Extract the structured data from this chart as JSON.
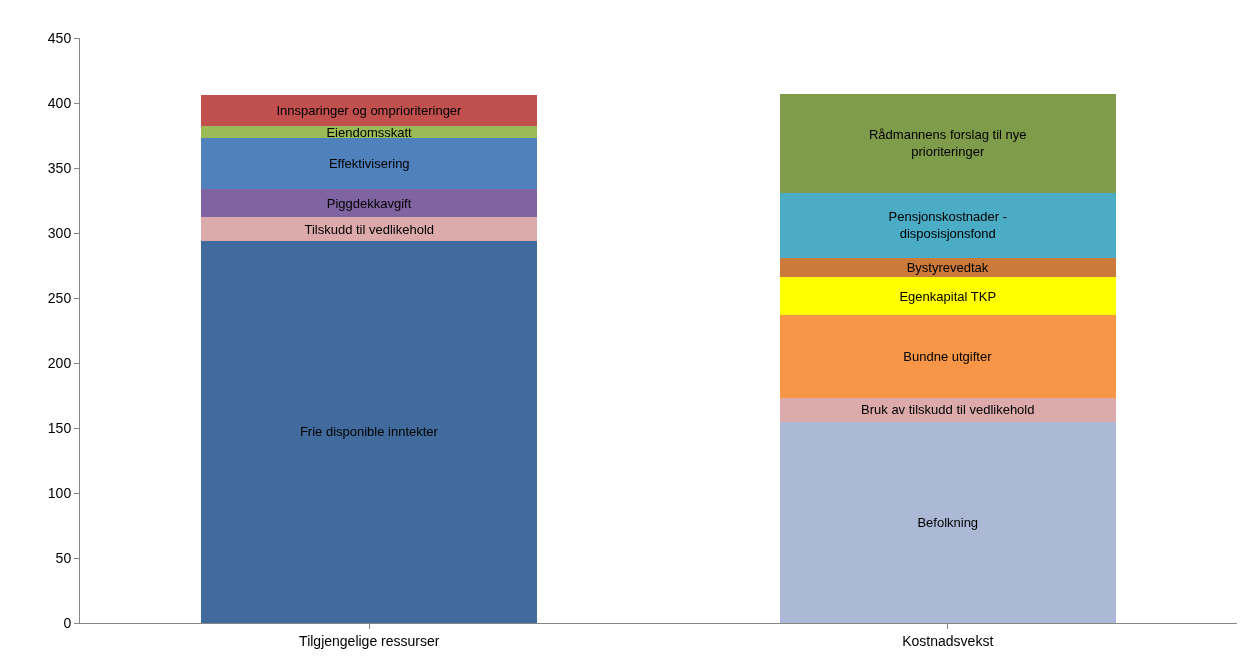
{
  "chart_data": {
    "type": "bar",
    "stacked": true,
    "categories": [
      "Tilgjengelige ressurser",
      "Kostnadsvekst"
    ],
    "series": [
      {
        "name": "Frie disponible inntekter",
        "color": "#416b9c",
        "values": [
          294,
          null
        ]
      },
      {
        "name": "Tilskudd til vedlikehold",
        "color": "#dcaaaa",
        "values": [
          18,
          null
        ]
      },
      {
        "name": "Piggdekkavgift",
        "color": "#8064a2",
        "values": [
          22,
          null
        ]
      },
      {
        "name": "Effektivisering",
        "color": "#4f81bd",
        "values": [
          39,
          null
        ]
      },
      {
        "name": "Eiendomsskatt",
        "color": "#9bbb59",
        "values": [
          9,
          null
        ]
      },
      {
        "name": "Innsparinger og omprioriteringer",
        "color": "#c0504d",
        "values": [
          24,
          null
        ]
      },
      {
        "name": "Befolkning",
        "color": "#abb9d6",
        "values": [
          null,
          155
        ]
      },
      {
        "name": "Bruk av tilskudd til vedlikehold",
        "color": "#dcaaaa",
        "values": [
          null,
          18
        ]
      },
      {
        "name": "Bundne utgifter",
        "color": "#f79646",
        "values": [
          null,
          64
        ]
      },
      {
        "name": "Egenkapital TKP",
        "color": "#ffff00",
        "values": [
          null,
          29
        ]
      },
      {
        "name": "Bystyrevedtak",
        "color": "#cc7a3a",
        "values": [
          null,
          15
        ]
      },
      {
        "name": "Pensjonskostnader - disposisjonsfond",
        "color": "#4bacc6",
        "values": [
          null,
          50
        ]
      },
      {
        "name": "Rådmannens forslag til nye prioriteringer",
        "color": "#7f9c4a",
        "values": [
          null,
          76
        ]
      }
    ],
    "ylim": [
      0,
      450
    ],
    "yticks": [
      0,
      50,
      100,
      150,
      200,
      250,
      300,
      350,
      400,
      450
    ],
    "grid": false,
    "legend": false
  }
}
